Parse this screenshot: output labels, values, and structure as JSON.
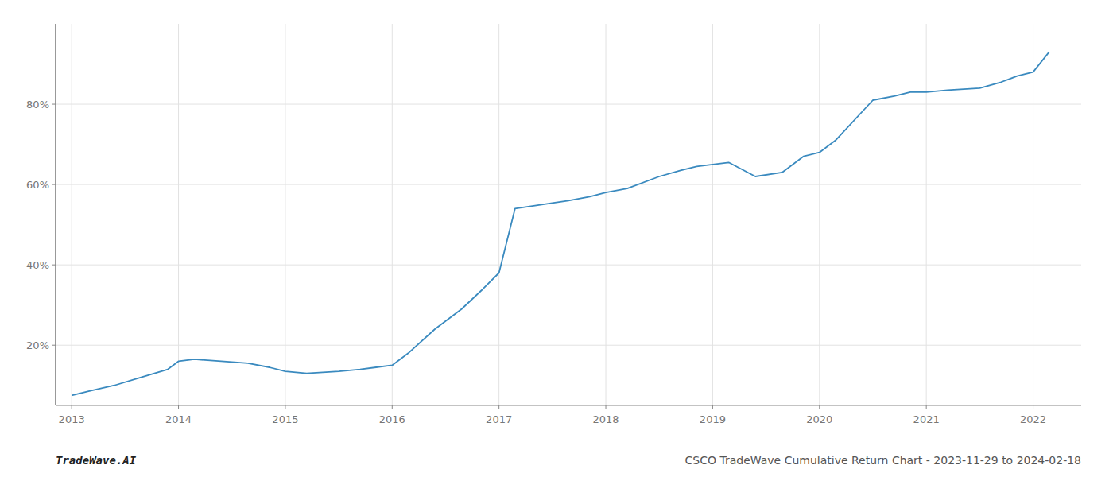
{
  "chart_data": {
    "type": "line",
    "x": [
      2013.0,
      2013.15,
      2013.4,
      2013.65,
      2013.9,
      2014.0,
      2014.15,
      2014.4,
      2014.65,
      2014.85,
      2015.0,
      2015.2,
      2015.5,
      2015.7,
      2015.85,
      2016.0,
      2016.15,
      2016.4,
      2016.65,
      2016.85,
      2017.0,
      2017.15,
      2017.4,
      2017.65,
      2017.85,
      2018.0,
      2018.2,
      2018.5,
      2018.7,
      2018.85,
      2019.0,
      2019.15,
      2019.4,
      2019.65,
      2019.85,
      2020.0,
      2020.15,
      2020.5,
      2020.7,
      2020.85,
      2021.0,
      2021.2,
      2021.5,
      2021.7,
      2021.85,
      2022.0,
      2022.15
    ],
    "values": [
      7.5,
      8.5,
      10,
      12,
      14,
      16,
      16.5,
      16,
      15.5,
      14.5,
      13.5,
      13,
      13.5,
      14,
      14.5,
      15,
      18,
      24,
      29,
      34,
      38,
      54,
      55,
      56,
      57,
      58,
      59,
      62,
      63.5,
      64.5,
      65,
      65.5,
      62,
      63,
      67,
      68,
      71,
      81,
      82,
      83,
      83,
      83.5,
      84,
      85.5,
      87,
      88,
      93
    ],
    "color": "#3a8abf",
    "xlim": [
      2012.85,
      2022.45
    ],
    "ylim": [
      5,
      100
    ],
    "xticks": [
      2013,
      2014,
      2015,
      2016,
      2017,
      2018,
      2019,
      2020,
      2021,
      2022
    ],
    "yticks": [
      {
        "value": 20,
        "label": "20%"
      },
      {
        "value": 40,
        "label": "40%"
      },
      {
        "value": 60,
        "label": "60%"
      },
      {
        "value": 80,
        "label": "80%"
      }
    ],
    "grid": true,
    "annotations": [
      "TradeWave.AI",
      "CSCO TradeWave Cumulative Return Chart - 2023-11-29 to 2024-02-18"
    ]
  }
}
